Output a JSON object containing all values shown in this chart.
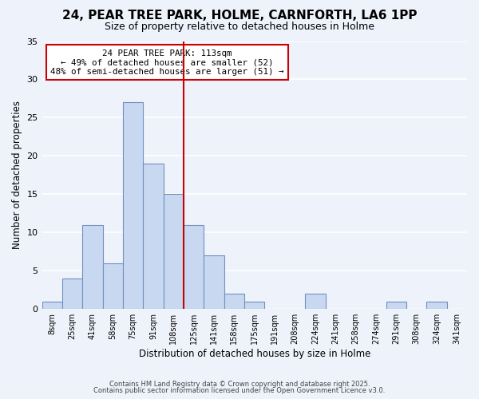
{
  "title": "24, PEAR TREE PARK, HOLME, CARNFORTH, LA6 1PP",
  "subtitle": "Size of property relative to detached houses in Holme",
  "xlabel": "Distribution of detached houses by size in Holme",
  "ylabel": "Number of detached properties",
  "bin_labels": [
    "8sqm",
    "25sqm",
    "41sqm",
    "58sqm",
    "75sqm",
    "91sqm",
    "108sqm",
    "125sqm",
    "141sqm",
    "158sqm",
    "175sqm",
    "191sqm",
    "208sqm",
    "224sqm",
    "241sqm",
    "258sqm",
    "274sqm",
    "291sqm",
    "308sqm",
    "324sqm",
    "341sqm"
  ],
  "bar_values": [
    1,
    4,
    11,
    6,
    27,
    19,
    15,
    11,
    7,
    2,
    1,
    0,
    0,
    2,
    0,
    0,
    0,
    1,
    0,
    1,
    0
  ],
  "bar_color": "#c8d8f0",
  "bar_edge_color": "#7090c0",
  "vline_bar_index": 6,
  "ylim": [
    0,
    35
  ],
  "yticks": [
    0,
    5,
    10,
    15,
    20,
    25,
    30,
    35
  ],
  "annotation_title": "24 PEAR TREE PARK: 113sqm",
  "annotation_line1": "← 49% of detached houses are smaller (52)",
  "annotation_line2": "48% of semi-detached houses are larger (51) →",
  "footer1": "Contains HM Land Registry data © Crown copyright and database right 2025.",
  "footer2": "Contains public sector information licensed under the Open Government Licence v3.0.",
  "background_color": "#eef2fb",
  "grid_color": "#ffffff",
  "annotation_box_color": "#ffffff",
  "annotation_box_edge": "#cc0000",
  "vline_color": "#cc0000"
}
